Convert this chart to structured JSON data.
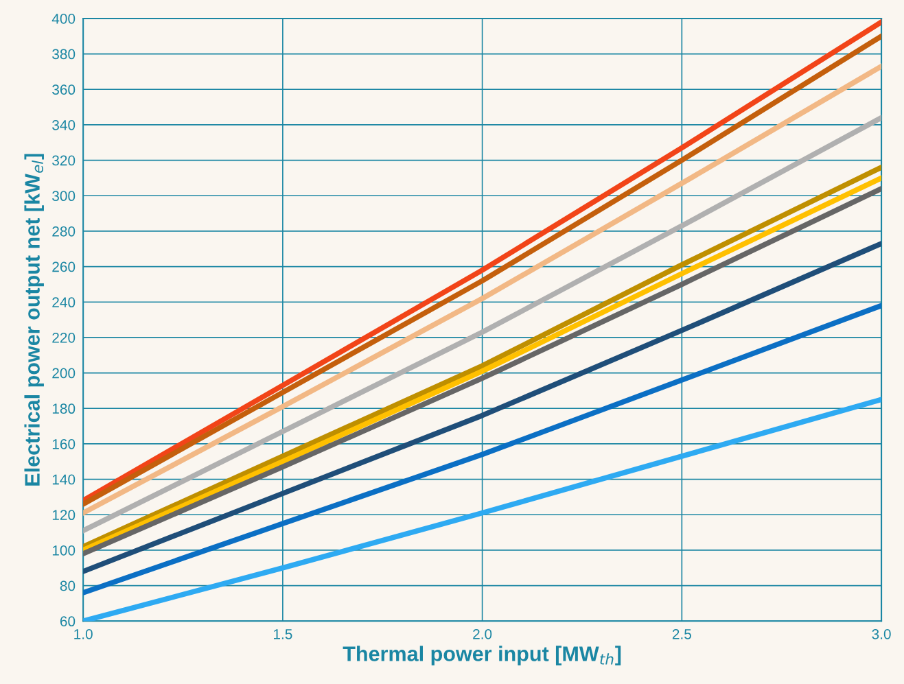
{
  "chart_data": {
    "type": "line",
    "xlabel": "Thermal power input [MW$_{th}$]",
    "ylabel": "Electrical power output net [kW$_{el}$]",
    "x": [
      1.0,
      1.5,
      2.0,
      2.5,
      3.0
    ],
    "series": [
      {
        "color": "#f24418",
        "values": [
          128,
          193,
          258,
          327,
          398
        ]
      },
      {
        "color": "#c45f0c",
        "values": [
          126,
          189,
          252,
          320,
          390
        ]
      },
      {
        "color": "#f2b885",
        "values": [
          121,
          181,
          242,
          307,
          373
        ]
      },
      {
        "color": "#b0b0b0",
        "values": [
          111,
          167,
          223,
          283,
          344
        ]
      },
      {
        "color": "#bf8f00",
        "values": [
          102,
          153,
          204,
          261,
          316
        ]
      },
      {
        "color": "#ffc000",
        "values": [
          100,
          150,
          201,
          256,
          310
        ]
      },
      {
        "color": "#666666",
        "values": [
          98,
          147,
          197,
          250,
          304
        ]
      },
      {
        "color": "#1f4e79",
        "values": [
          88,
          132,
          176,
          224,
          273
        ]
      },
      {
        "color": "#0b6fc4",
        "values": [
          76,
          115,
          154,
          196,
          238
        ]
      },
      {
        "color": "#2eaaf2",
        "values": [
          60,
          90,
          121,
          153,
          185
        ]
      }
    ],
    "xlim": [
      1.0,
      3.0
    ],
    "xticks": [
      {
        "value": 1.0,
        "label": "1.0"
      },
      {
        "value": 1.5,
        "label": "1.5"
      },
      {
        "value": 2.0,
        "label": "2.0"
      },
      {
        "value": 2.5,
        "label": "2.5"
      },
      {
        "value": 3.0,
        "label": "3.0"
      }
    ],
    "ylim": [
      60,
      400
    ],
    "yticks": [
      60,
      80,
      100,
      120,
      140,
      160,
      180,
      200,
      220,
      240,
      260,
      280,
      300,
      320,
      340,
      360,
      380,
      400
    ],
    "grid": true,
    "marker": "none",
    "line_style": "solid"
  }
}
